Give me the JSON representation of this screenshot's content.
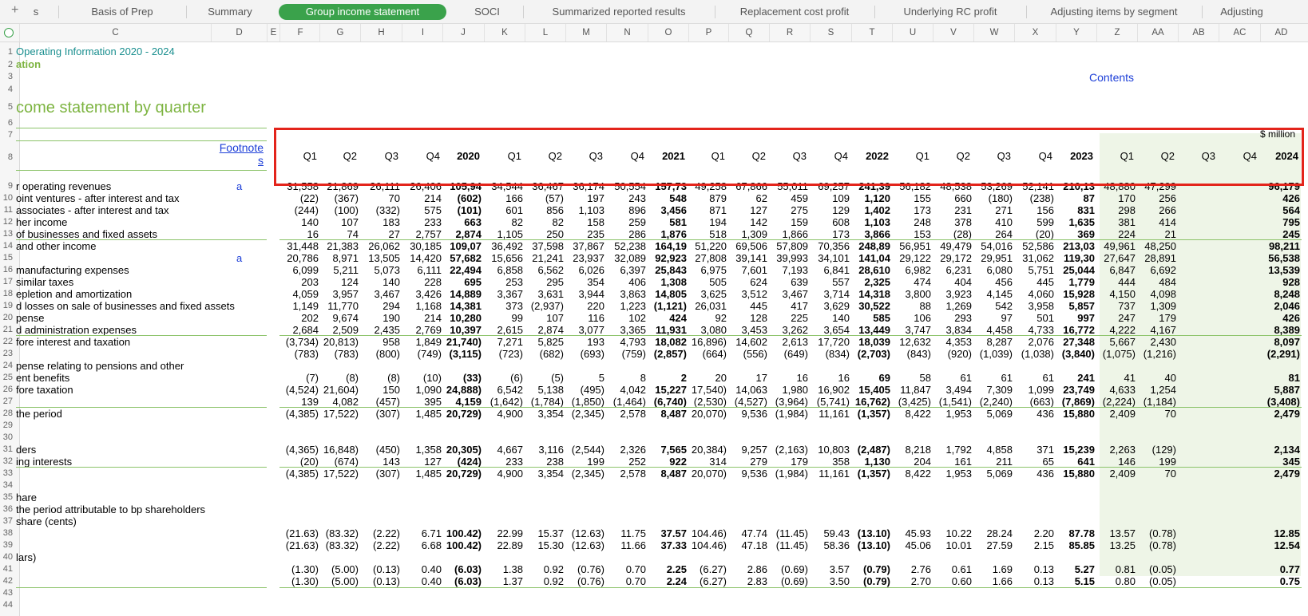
{
  "tabs": [
    {
      "label": "s",
      "left": 35,
      "width": 20
    },
    {
      "label": "Basis of Prep",
      "left": 78,
      "width": 150
    },
    {
      "label": "Summary",
      "left": 238,
      "width": 100
    },
    {
      "label": "Group income statement",
      "left": 349,
      "width": 210,
      "active": true
    },
    {
      "label": "SOCI",
      "left": 570,
      "width": 80
    },
    {
      "label": "Summarized reported results",
      "left": 660,
      "width": 230
    },
    {
      "label": "Replacement cost profit",
      "left": 900,
      "width": 190
    },
    {
      "label": "Underlying RC profit",
      "left": 1100,
      "width": 180
    },
    {
      "label": "Adjusting items by segment",
      "left": 1290,
      "width": 210
    },
    {
      "label": "Adjusting",
      "left": 1510,
      "width": 90
    }
  ],
  "column_headers": [
    "C",
    "D",
    "E",
    "F",
    "G",
    "H",
    "I",
    "J",
    "K",
    "L",
    "M",
    "N",
    "O",
    "P",
    "Q",
    "R",
    "S",
    "T",
    "U",
    "V",
    "W",
    "X",
    "Y",
    "Z",
    "AA",
    "AB",
    "AC",
    "AD"
  ],
  "sheet": {
    "header_line_1": "Operating Information 2020 - 2024",
    "header_line_2": "ation",
    "contents_link": "Contents",
    "title": "come statement by quarter",
    "unit": "$ million",
    "footnote_header": "Footnotes",
    "footnote_marker": "a"
  },
  "quarter_headers": [
    "Q1",
    "Q2",
    "Q3",
    "Q4",
    "2020",
    "Q1",
    "Q2",
    "Q3",
    "Q4",
    "2021",
    "Q1",
    "Q2",
    "Q3",
    "Q4",
    "2022",
    "Q1",
    "Q2",
    "Q3",
    "Q4",
    "2023",
    "Q1",
    "Q2",
    "Q3",
    "Q4",
    "2024"
  ],
  "rows": [
    {
      "rn": 9,
      "label": "r operating revenues",
      "fn": "a",
      "vals": [
        "31,558",
        "21,869",
        "26,111",
        "26,406",
        "105,94",
        "34,544",
        "36,467",
        "36,174",
        "50,554",
        "157,73",
        "49,258",
        "67,866",
        "55,011",
        "69,257",
        "241,39",
        "56,182",
        "48,538",
        "53,269",
        "52,141",
        "210,13",
        "48,880",
        "47,299",
        "",
        "",
        "96,179"
      ]
    },
    {
      "rn": 10,
      "label": "oint ventures - after interest and tax",
      "vals": [
        "(22)",
        "(367)",
        "70",
        "214",
        "(602)",
        "166",
        "(57)",
        "197",
        "243",
        "548",
        "879",
        "62",
        "459",
        "109",
        "1,120",
        "155",
        "660",
        "(180)",
        "(238)",
        "87",
        "170",
        "256",
        "",
        "",
        "426"
      ]
    },
    {
      "rn": 11,
      "label": "associates - after interest and tax",
      "vals": [
        "(244)",
        "(100)",
        "(332)",
        "575",
        "(101)",
        "601",
        "856",
        "1,103",
        "896",
        "3,456",
        "871",
        "127",
        "275",
        "129",
        "1,402",
        "173",
        "231",
        "271",
        "156",
        "831",
        "298",
        "266",
        "",
        "",
        "564"
      ]
    },
    {
      "rn": 12,
      "label": "her income",
      "vals": [
        "140",
        "107",
        "183",
        "233",
        "663",
        "82",
        "82",
        "158",
        "259",
        "581",
        "194",
        "142",
        "159",
        "608",
        "1,103",
        "248",
        "378",
        "410",
        "599",
        "1,635",
        "381",
        "414",
        "",
        "",
        "795"
      ]
    },
    {
      "rn": 13,
      "label": "of businesses and fixed assets",
      "vals": [
        "16",
        "74",
        "27",
        "2,757",
        "2,874",
        "1,105",
        "250",
        "235",
        "286",
        "1,876",
        "518",
        "1,309",
        "1,866",
        "173",
        "3,866",
        "153",
        "(28)",
        "264",
        "(20)",
        "369",
        "224",
        "21",
        "",
        "",
        "245"
      ]
    },
    {
      "rn": 14,
      "label": " and other income",
      "vals": [
        "31,448",
        "21,383",
        "26,062",
        "30,185",
        "109,07",
        "36,492",
        "37,598",
        "37,867",
        "52,238",
        "164,19",
        "51,220",
        "69,506",
        "57,809",
        "70,356",
        "248,89",
        "56,951",
        "49,479",
        "54,016",
        "52,586",
        "213,03",
        "49,961",
        "48,250",
        "",
        "",
        "98,211"
      ]
    },
    {
      "rn": 15,
      "label": "",
      "fn": "a",
      "vals": [
        "20,786",
        "8,971",
        "13,505",
        "14,420",
        "57,682",
        "15,656",
        "21,241",
        "23,937",
        "32,089",
        "92,923",
        "27,808",
        "39,141",
        "39,993",
        "34,101",
        "141,04",
        "29,122",
        "29,172",
        "29,951",
        "31,062",
        "119,30",
        "27,647",
        "28,891",
        "",
        "",
        "56,538"
      ]
    },
    {
      "rn": 16,
      "label": " manufacturing expenses",
      "vals": [
        "6,099",
        "5,211",
        "5,073",
        "6,111",
        "22,494",
        "6,858",
        "6,562",
        "6,026",
        "6,397",
        "25,843",
        "6,975",
        "7,601",
        "7,193",
        "6,841",
        "28,610",
        "6,982",
        "6,231",
        "6,080",
        "5,751",
        "25,044",
        "6,847",
        "6,692",
        "",
        "",
        "13,539"
      ]
    },
    {
      "rn": 17,
      "label": " similar taxes",
      "vals": [
        "203",
        "124",
        "140",
        "228",
        "695",
        "253",
        "295",
        "354",
        "406",
        "1,308",
        "505",
        "624",
        "639",
        "557",
        "2,325",
        "474",
        "404",
        "456",
        "445",
        "1,779",
        "444",
        "484",
        "",
        "",
        "928"
      ]
    },
    {
      "rn": 18,
      "label": "epletion and amortization",
      "vals": [
        "4,059",
        "3,957",
        "3,467",
        "3,426",
        "14,889",
        "3,367",
        "3,631",
        "3,944",
        "3,863",
        "14,805",
        "3,625",
        "3,512",
        "3,467",
        "3,714",
        "14,318",
        "3,800",
        "3,923",
        "4,145",
        "4,060",
        "15,928",
        "4,150",
        "4,098",
        "",
        "",
        "8,248"
      ]
    },
    {
      "rn": 19,
      "label": "d losses on sale of businesses and fixed assets",
      "vals": [
        "1,149",
        "11,770",
        "294",
        "1,168",
        "14,381",
        "373",
        "(2,937)",
        "220",
        "1,223",
        "(1,121)",
        "26,031",
        "445",
        "417",
        "3,629",
        "30,522",
        "88",
        "1,269",
        "542",
        "3,958",
        "5,857",
        "737",
        "1,309",
        "",
        "",
        "2,046"
      ]
    },
    {
      "rn": 20,
      "label": "pense",
      "vals": [
        "202",
        "9,674",
        "190",
        "214",
        "10,280",
        "99",
        "107",
        "116",
        "102",
        "424",
        "92",
        "128",
        "225",
        "140",
        "585",
        "106",
        "293",
        "97",
        "501",
        "997",
        "247",
        "179",
        "",
        "",
        "426"
      ]
    },
    {
      "rn": 21,
      "label": "d administration expenses",
      "vals": [
        "2,684",
        "2,509",
        "2,435",
        "2,769",
        "10,397",
        "2,615",
        "2,874",
        "3,077",
        "3,365",
        "11,931",
        "3,080",
        "3,453",
        "3,262",
        "3,654",
        "13,449",
        "3,747",
        "3,834",
        "4,458",
        "4,733",
        "16,772",
        "4,222",
        "4,167",
        "",
        "",
        "8,389"
      ]
    },
    {
      "rn": 22,
      "label": "fore interest and taxation",
      "vals": [
        "(3,734)",
        "20,813)",
        "958",
        "1,849",
        "21,740)",
        "7,271",
        "5,825",
        "193",
        "4,793",
        "18,082",
        "16,896)",
        "14,602",
        "2,613",
        "17,720",
        "18,039",
        "12,632",
        "4,353",
        "8,287",
        "2,076",
        "27,348",
        "5,667",
        "2,430",
        "",
        "",
        "8,097"
      ]
    },
    {
      "rn": 23,
      "label": "",
      "vals": [
        "(783)",
        "(783)",
        "(800)",
        "(749)",
        "(3,115)",
        "(723)",
        "(682)",
        "(693)",
        "(759)",
        "(2,857)",
        "(664)",
        "(556)",
        "(649)",
        "(834)",
        "(2,703)",
        "(843)",
        "(920)",
        "(1,039)",
        "(1,038)",
        "(3,840)",
        "(1,075)",
        "(1,216)",
        "",
        "",
        "(2,291)"
      ]
    },
    {
      "rn": 24,
      "label": "pense relating to pensions and other",
      "vals": []
    },
    {
      "rn": 25,
      "label": "ent benefits",
      "vals": [
        "(7)",
        "(8)",
        "(8)",
        "(10)",
        "(33)",
        "(6)",
        "(5)",
        "5",
        "8",
        "2",
        "20",
        "17",
        "16",
        "16",
        "69",
        "58",
        "61",
        "61",
        "61",
        "241",
        "41",
        "40",
        "",
        "",
        "81"
      ]
    },
    {
      "rn": 26,
      "label": "fore taxation",
      "vals": [
        "(4,524)",
        "21,604)",
        "150",
        "1,090",
        "24,888)",
        "6,542",
        "5,138",
        "(495)",
        "4,042",
        "15,227",
        "17,540)",
        "14,063",
        "1,980",
        "16,902",
        "15,405",
        "11,847",
        "3,494",
        "7,309",
        "1,099",
        "23,749",
        "4,633",
        "1,254",
        "",
        "",
        "5,887"
      ]
    },
    {
      "rn": 27,
      "label": "",
      "vals": [
        "139",
        "4,082",
        "(457)",
        "395",
        "4,159",
        "(1,642)",
        "(1,784)",
        "(1,850)",
        "(1,464)",
        "(6,740)",
        "(2,530)",
        "(4,527)",
        "(3,964)",
        "(5,741)",
        "16,762)",
        "(3,425)",
        "(1,541)",
        "(2,240)",
        "(663)",
        "(7,869)",
        "(2,224)",
        "(1,184)",
        "",
        "",
        "(3,408)"
      ]
    },
    {
      "rn": 28,
      "label": " the period",
      "vals": [
        "(4,385)",
        "17,522)",
        "(307)",
        "1,485",
        "20,729)",
        "4,900",
        "3,354",
        "(2,345)",
        "2,578",
        "8,487",
        "20,070)",
        "9,536",
        "(1,984)",
        "11,161",
        "(1,357)",
        "8,422",
        "1,953",
        "5,069",
        "436",
        "15,880",
        "2,409",
        "70",
        "",
        "",
        "2,479"
      ]
    },
    {
      "rn": 29,
      "label": "",
      "vals": []
    },
    {
      "rn": 30,
      "label": "",
      "vals": []
    },
    {
      "rn": 31,
      "label": "ders",
      "vals": [
        "(4,365)",
        "16,848)",
        "(450)",
        "1,358",
        "20,305)",
        "4,667",
        "3,116",
        "(2,544)",
        "2,326",
        "7,565",
        "20,384)",
        "9,257",
        "(2,163)",
        "10,803",
        "(2,487)",
        "8,218",
        "1,792",
        "4,858",
        "371",
        "15,239",
        "2,263",
        "(129)",
        "",
        "",
        "2,134"
      ]
    },
    {
      "rn": 32,
      "label": "ing interests",
      "vals": [
        "(20)",
        "(674)",
        "143",
        "127",
        "(424)",
        "233",
        "238",
        "199",
        "252",
        "922",
        "314",
        "279",
        "179",
        "358",
        "1,130",
        "204",
        "161",
        "211",
        "65",
        "641",
        "146",
        "199",
        "",
        "",
        "345"
      ]
    },
    {
      "rn": 33,
      "label": "",
      "vals": [
        "(4,385)",
        "17,522)",
        "(307)",
        "1,485",
        "20,729)",
        "4,900",
        "3,354",
        "(2,345)",
        "2,578",
        "8,487",
        "20,070)",
        "9,536",
        "(1,984)",
        "11,161",
        "(1,357)",
        "8,422",
        "1,953",
        "5,069",
        "436",
        "15,880",
        "2,409",
        "70",
        "",
        "",
        "2,479"
      ]
    },
    {
      "rn": 34,
      "label": "",
      "vals": []
    },
    {
      "rn": 35,
      "label": "hare",
      "vals": []
    },
    {
      "rn": 36,
      "label": " the period attributable to bp shareholders",
      "vals": []
    },
    {
      "rn": 37,
      "label": " share (cents)",
      "vals": []
    },
    {
      "rn": 38,
      "label": "",
      "vals": [
        "(21.63)",
        "(83.32)",
        "(2.22)",
        "6.71",
        "100.42)",
        "22.99",
        "15.37",
        "(12.63)",
        "11.75",
        "37.57",
        "104.46)",
        "47.74",
        "(11.45)",
        "59.43",
        "(13.10)",
        "45.93",
        "10.22",
        "28.24",
        "2.20",
        "87.78",
        "13.57",
        "(0.78)",
        "",
        "",
        "12.85"
      ]
    },
    {
      "rn": 39,
      "label": "",
      "vals": [
        "(21.63)",
        "(83.32)",
        "(2.22)",
        "6.68",
        "100.42)",
        "22.89",
        "15.30",
        "(12.63)",
        "11.66",
        "37.33",
        "104.46)",
        "47.18",
        "(11.45)",
        "58.36",
        "(13.10)",
        "45.06",
        "10.01",
        "27.59",
        "2.15",
        "85.85",
        "13.25",
        "(0.78)",
        "",
        "",
        "12.54"
      ]
    },
    {
      "rn": 40,
      "label": "lars)",
      "vals": []
    },
    {
      "rn": 41,
      "label": "",
      "vals": [
        "(1.30)",
        "(5.00)",
        "(0.13)",
        "0.40",
        "(6.03)",
        "1.38",
        "0.92",
        "(0.76)",
        "0.70",
        "2.25",
        "(6.27)",
        "2.86",
        "(0.69)",
        "3.57",
        "(0.79)",
        "2.76",
        "0.61",
        "1.69",
        "0.13",
        "5.27",
        "0.81",
        "(0.05)",
        "",
        "",
        "0.77"
      ]
    },
    {
      "rn": 42,
      "label": "",
      "vals": [
        "(1.30)",
        "(5.00)",
        "(0.13)",
        "0.40",
        "(6.03)",
        "1.37",
        "0.92",
        "(0.76)",
        "0.70",
        "2.24",
        "(6.27)",
        "2.83",
        "(0.69)",
        "3.50",
        "(0.79)",
        "2.70",
        "0.60",
        "1.66",
        "0.13",
        "5.15",
        "0.80",
        "(0.05)",
        "",
        "",
        "0.75"
      ]
    },
    {
      "rn": 43,
      "label": "",
      "vals": []
    },
    {
      "rn": 44,
      "label": "",
      "vals": []
    }
  ]
}
